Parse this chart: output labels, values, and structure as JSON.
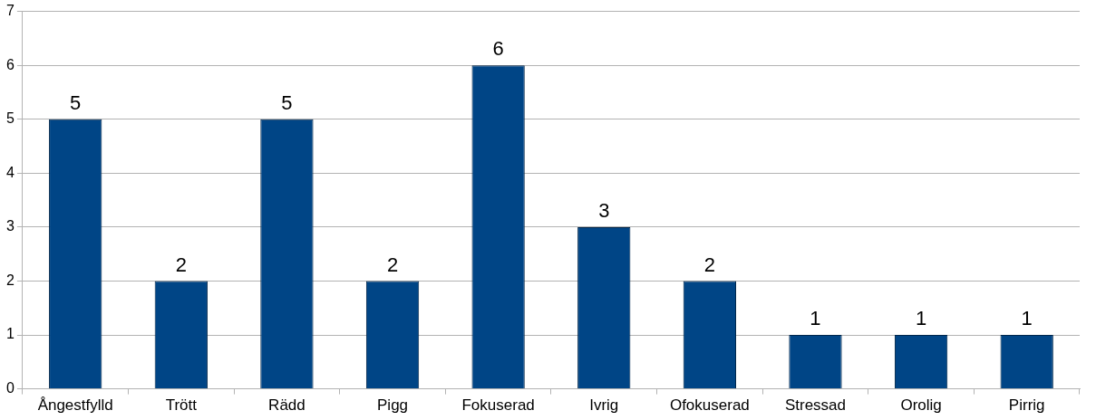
{
  "chart_data": {
    "type": "bar",
    "categories": [
      "Ångestfylld",
      "Trött",
      "Rädd",
      "Pigg",
      "Fokuserad",
      "Ivrig",
      "Ofokuserad",
      "Stressad",
      "Orolig",
      "Pirrig"
    ],
    "values": [
      5,
      2,
      5,
      2,
      6,
      3,
      2,
      1,
      1,
      1
    ],
    "color": "#004586",
    "ylim": [
      0,
      7
    ],
    "yticks": [
      0,
      1,
      2,
      3,
      4,
      5,
      6,
      7
    ],
    "grid": "y",
    "data_labels": true,
    "legend": false
  }
}
